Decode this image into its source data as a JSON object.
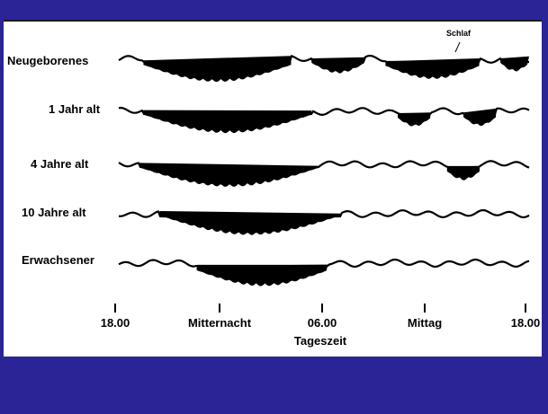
{
  "diagram": {
    "annotation": "Schlaf",
    "axis_title": "Tageszeit",
    "time_labels": [
      "18.00",
      "Mitternacht",
      "06.00",
      "Mittag",
      "18.00"
    ],
    "rows": [
      {
        "label": "Neugeborenes",
        "sleep": [
          [
            0.06,
            0.42
          ],
          [
            0.47,
            0.6
          ],
          [
            0.65,
            0.88
          ],
          [
            0.93,
            1.0
          ]
        ]
      },
      {
        "label": "1 Jahr alt",
        "sleep": [
          [
            0.06,
            0.47
          ],
          [
            0.68,
            0.76
          ],
          [
            0.84,
            0.92
          ]
        ]
      },
      {
        "label": "4 Jahre alt",
        "sleep": [
          [
            0.05,
            0.49
          ],
          [
            0.8,
            0.88
          ]
        ]
      },
      {
        "label": "10 Jahre alt",
        "sleep": [
          [
            0.1,
            0.54
          ]
        ]
      },
      {
        "label": "Erwachsener",
        "sleep": [
          [
            0.19,
            0.51
          ]
        ]
      }
    ]
  }
}
